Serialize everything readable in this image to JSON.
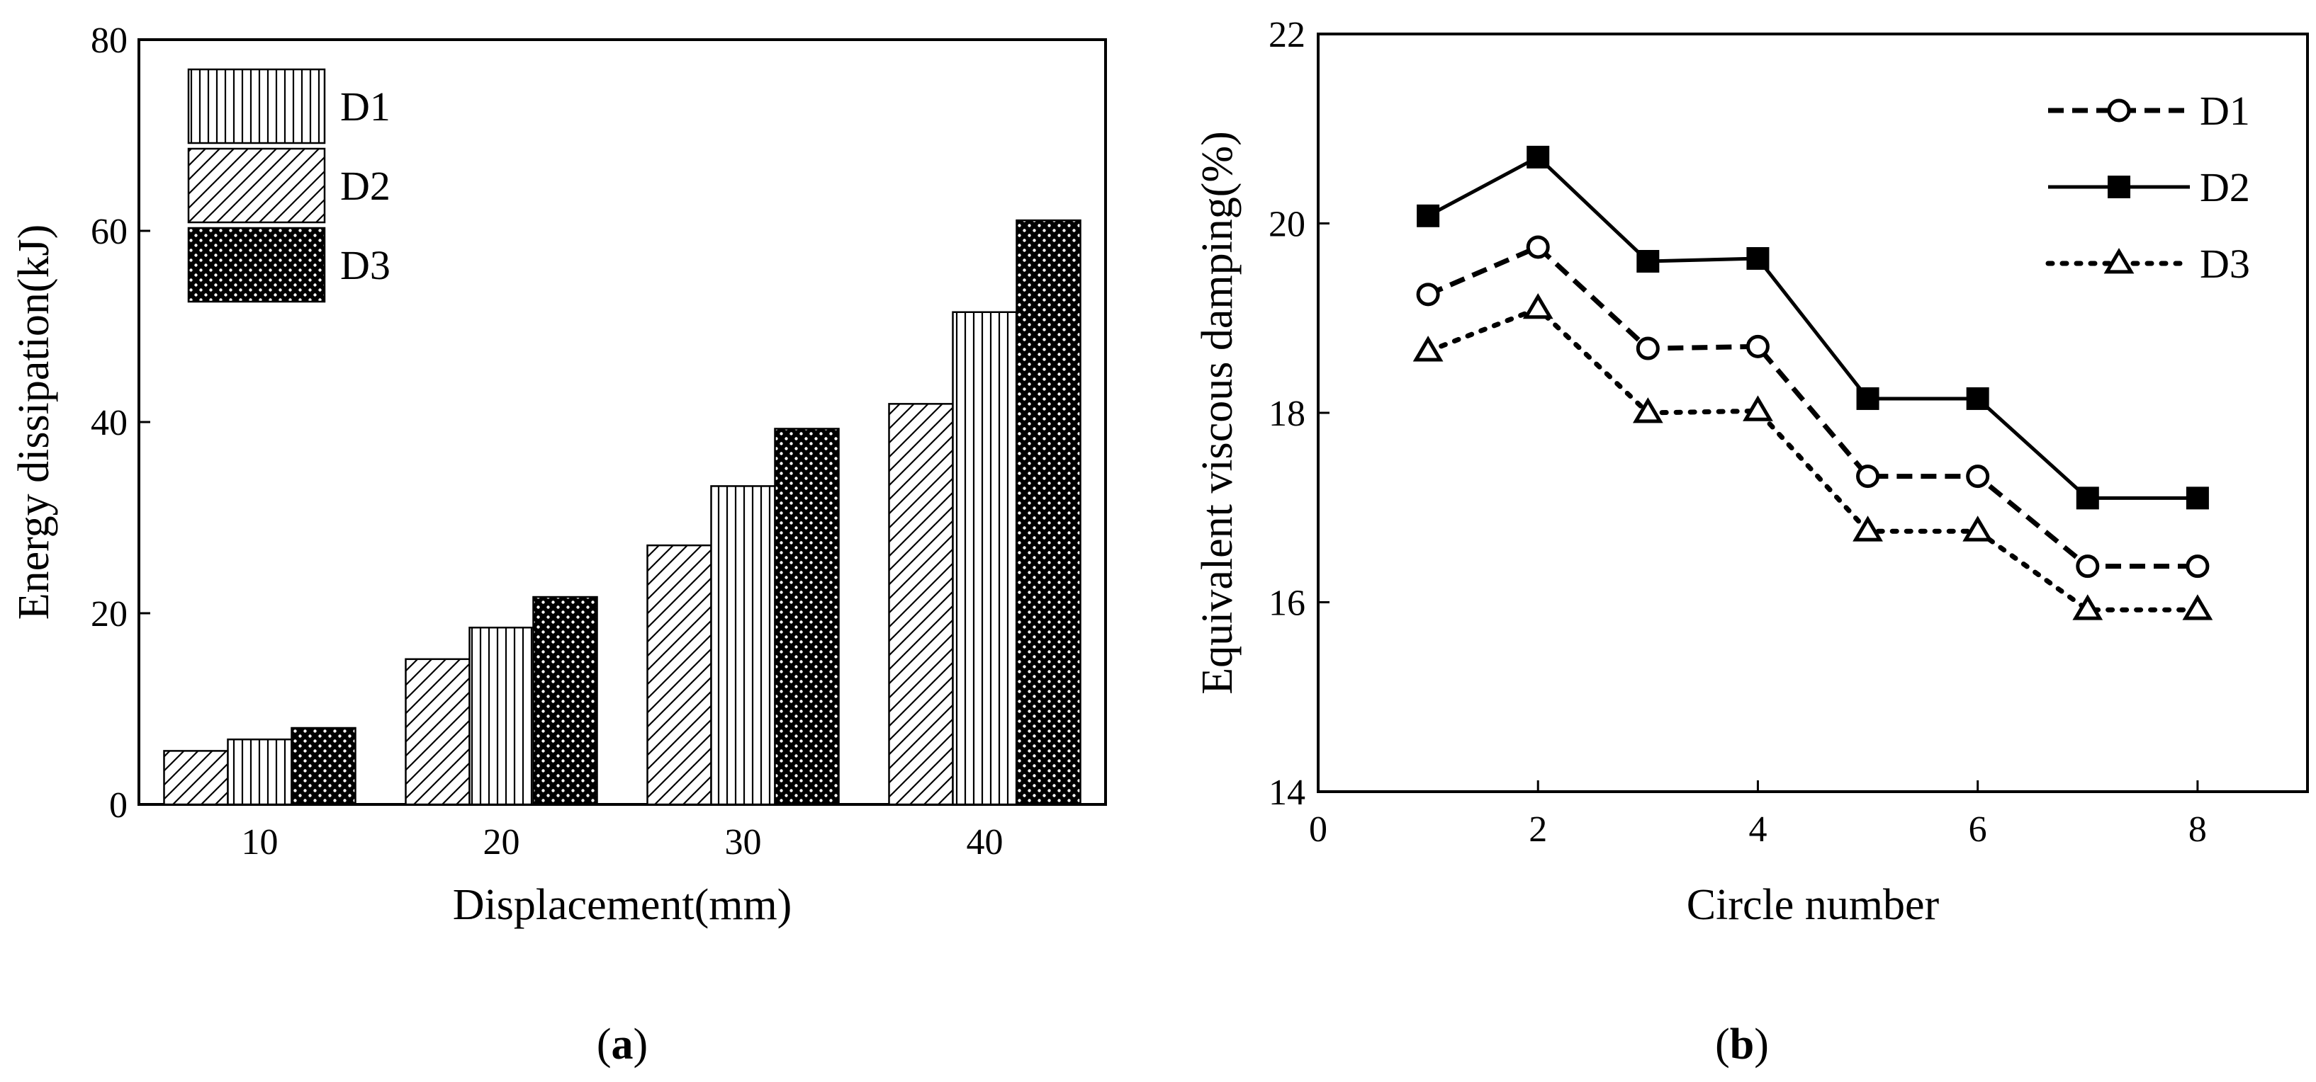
{
  "chart_data": [
    {
      "type": "bar",
      "panel_label": "a",
      "xlabel": "Displacement(mm)",
      "ylabel": "Energy dissipation(kJ)",
      "categories": [
        "10",
        "20",
        "30",
        "40"
      ],
      "ylim": [
        0,
        80
      ],
      "yticks": [
        "0",
        "20",
        "40",
        "60",
        "80"
      ],
      "legend_position": "top-left",
      "series": [
        {
          "name": "D1",
          "pattern": "vertical-lines",
          "values": [
            6.8,
            18.5,
            33.3,
            51.5
          ]
        },
        {
          "name": "D2",
          "pattern": "diagonal-hatch",
          "values": [
            5.6,
            15.2,
            27.1,
            41.9
          ]
        },
        {
          "name": "D3",
          "pattern": "black-dots",
          "values": [
            8.0,
            21.7,
            39.3,
            61.1
          ]
        }
      ],
      "bar_order": [
        "D2",
        "D1",
        "D3"
      ]
    },
    {
      "type": "line",
      "panel_label": "b",
      "xlabel": "Circle number",
      "ylabel": "Equivalent viscous damping(%)",
      "xlim": [
        0,
        9
      ],
      "ylim": [
        14,
        22
      ],
      "xticks": [
        "0",
        "2",
        "4",
        "6",
        "8"
      ],
      "yticks": [
        "14",
        "16",
        "18",
        "20",
        "22"
      ],
      "legend_position": "top-right",
      "x": [
        1,
        2,
        3,
        4,
        5,
        6,
        7,
        8
      ],
      "series": [
        {
          "name": "D1",
          "marker": "open-circle",
          "line": "dashed",
          "values": [
            19.25,
            19.75,
            18.68,
            18.7,
            17.33,
            17.33,
            16.38,
            16.38
          ]
        },
        {
          "name": "D2",
          "marker": "filled-square",
          "line": "solid",
          "values": [
            20.08,
            20.7,
            19.6,
            19.63,
            18.15,
            18.15,
            17.1,
            17.1
          ]
        },
        {
          "name": "D3",
          "marker": "open-triangle",
          "line": "dotted",
          "values": [
            18.65,
            19.1,
            18.0,
            18.02,
            16.75,
            16.75,
            15.92,
            15.92
          ]
        }
      ]
    }
  ]
}
